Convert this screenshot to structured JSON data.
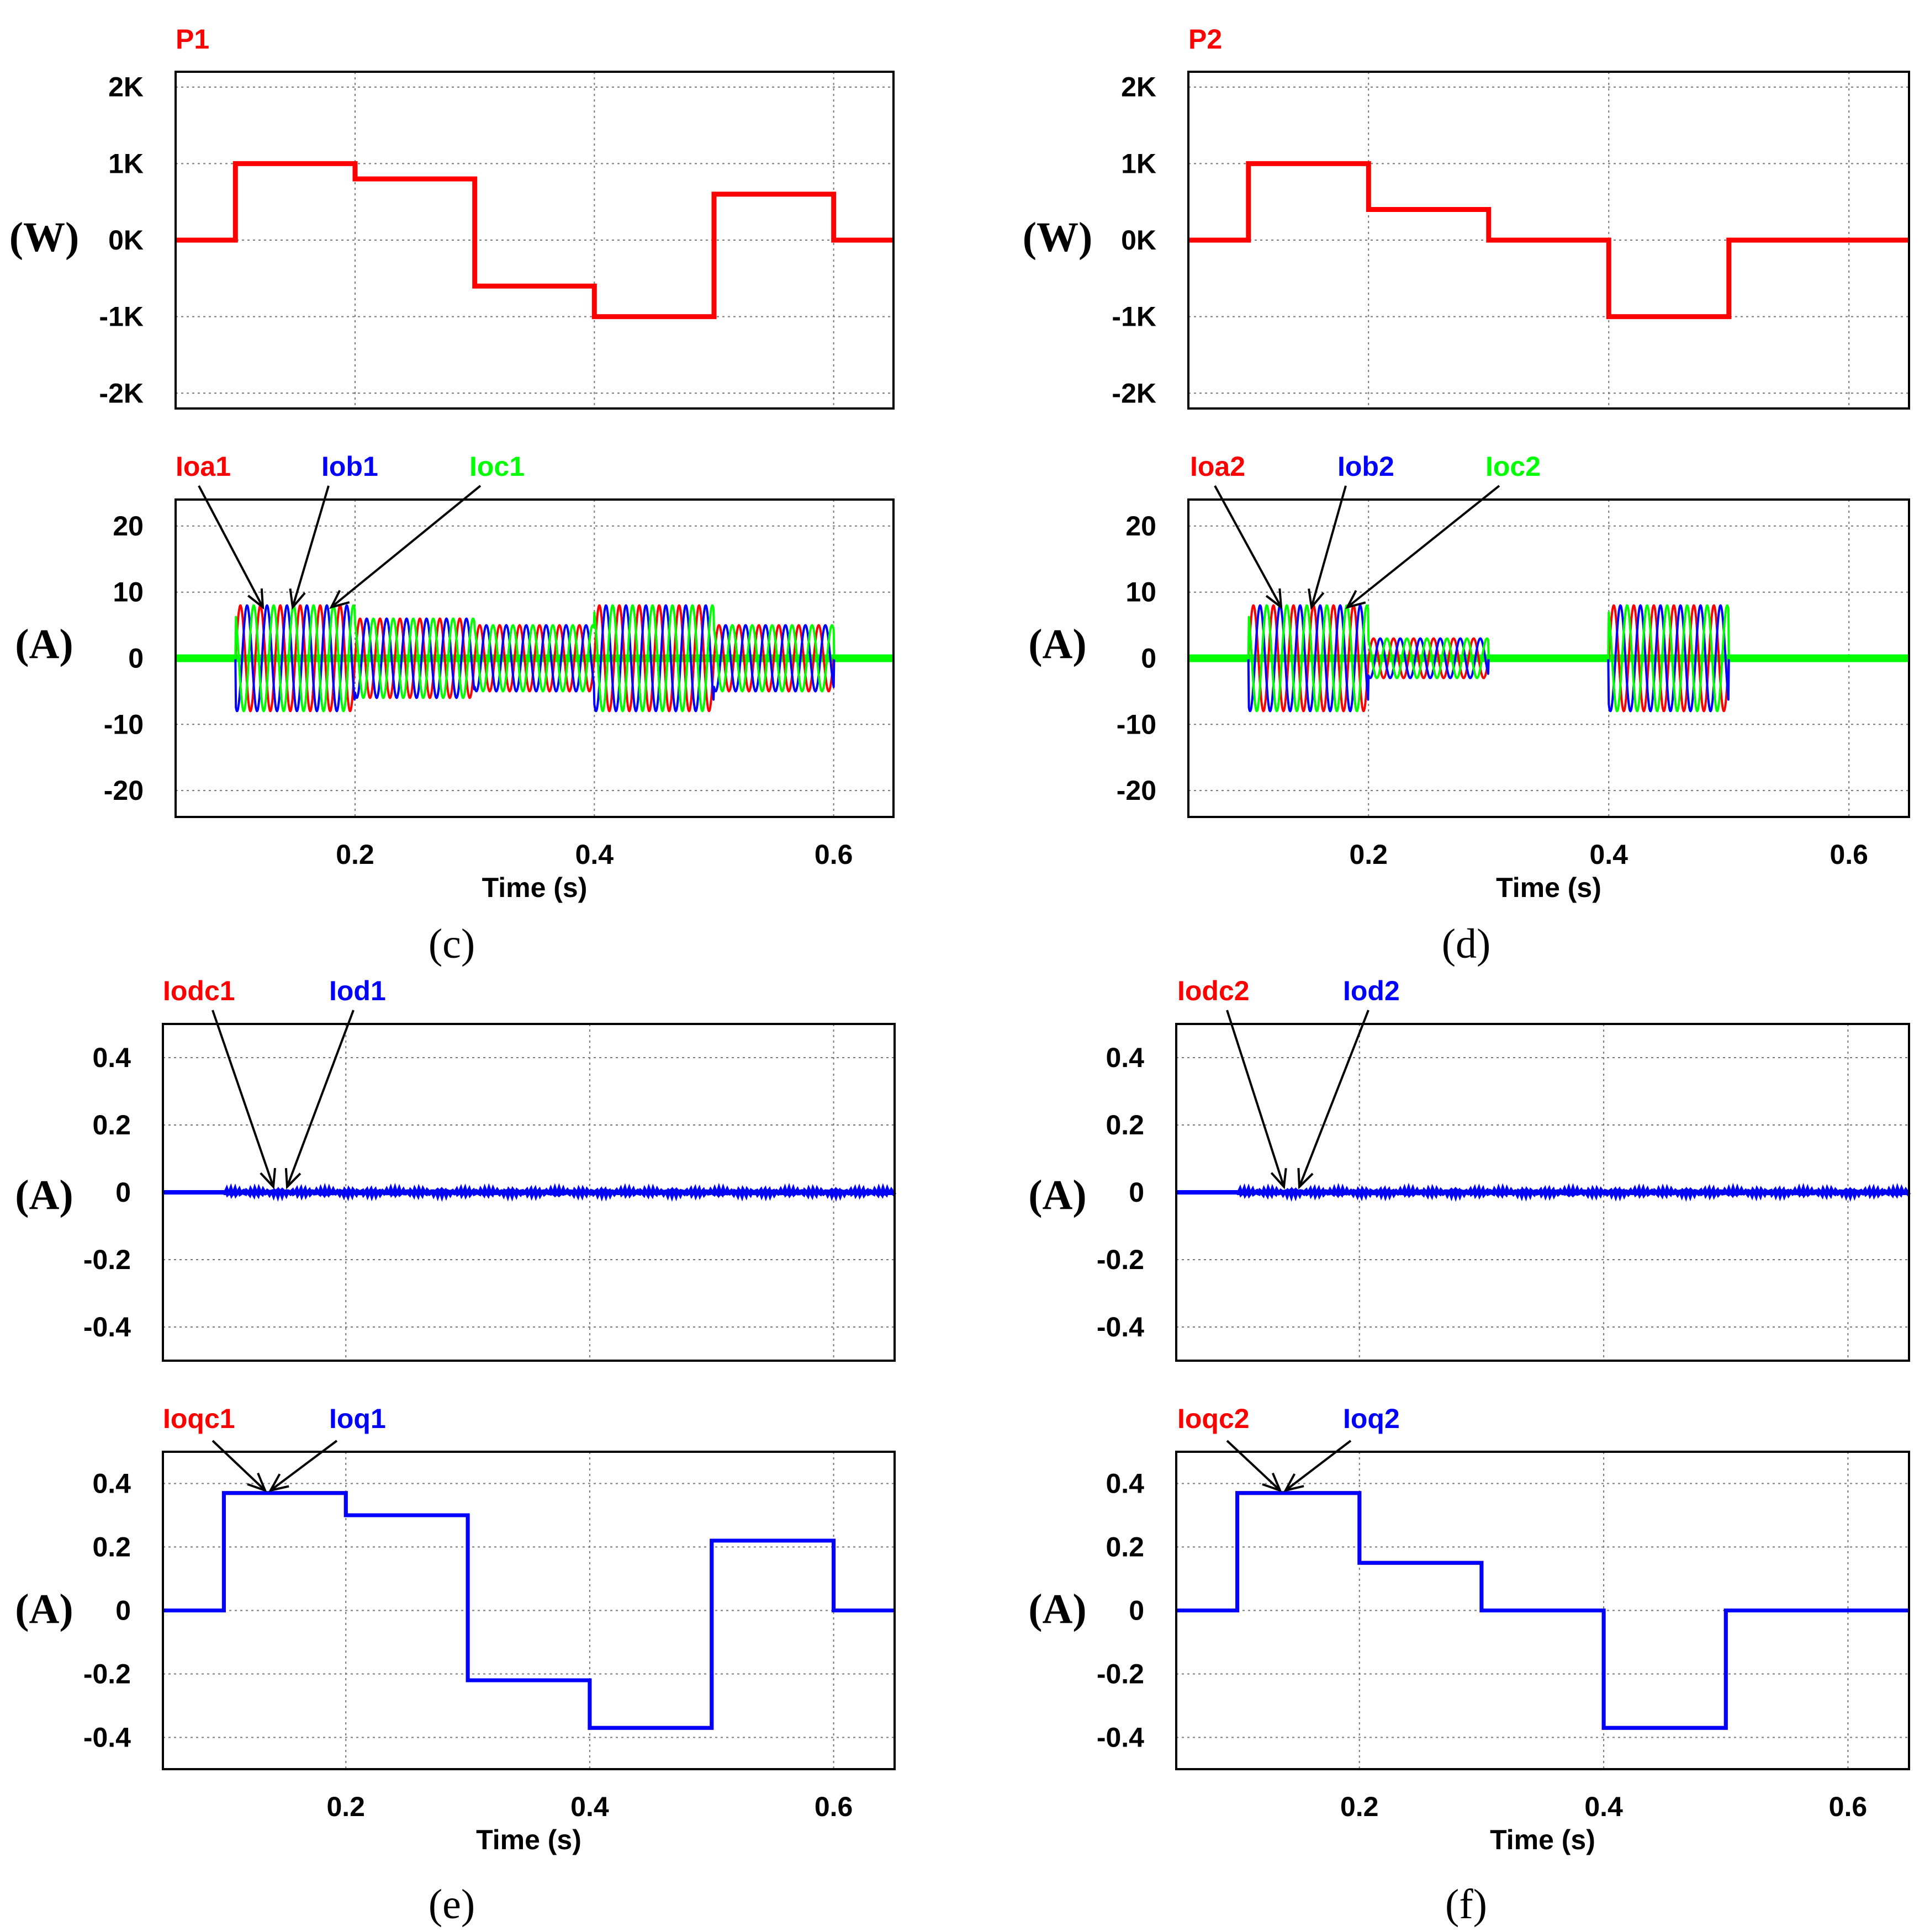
{
  "colors": {
    "red": "#ff0000",
    "blue": "#0000ff",
    "green": "#00ff00"
  },
  "captions": [
    "(c)",
    "(d)",
    "(e)",
    "(f)"
  ],
  "chart_data": [
    {
      "id": "c-power",
      "type": "line",
      "title": "P1",
      "ylabel": "(W)",
      "xlabel": "",
      "xlim": [
        0.05,
        0.65
      ],
      "xticks": [
        0.2,
        0.4,
        0.6
      ],
      "xtick_labels": [
        "",
        "",
        ""
      ],
      "ylim": [
        -2.2,
        2.2
      ],
      "yticks": [
        2,
        1,
        0,
        -1,
        -2
      ],
      "ytick_labels": [
        "2K",
        "1K",
        "0K",
        "-1K",
        "-2K"
      ],
      "series": [
        {
          "name": "P1",
          "color": "#ff0000",
          "x": [
            0.05,
            0.1,
            0.1,
            0.2,
            0.2,
            0.3,
            0.3,
            0.4,
            0.4,
            0.5,
            0.5,
            0.6,
            0.6,
            0.65
          ],
          "y": [
            0,
            0,
            1.0,
            1.0,
            0.8,
            0.8,
            -0.6,
            -0.6,
            -1.0,
            -1.0,
            0.6,
            0.6,
            0,
            0
          ]
        }
      ]
    },
    {
      "id": "c-current",
      "type": "line",
      "title": "",
      "ylabel": "(A)",
      "xlabel": "Time (s)",
      "xlim": [
        0.05,
        0.65
      ],
      "xticks": [
        0.2,
        0.4,
        0.6
      ],
      "xtick_labels": [
        "0.2",
        "0.4",
        "0.6"
      ],
      "ylim": [
        -24,
        24
      ],
      "yticks": [
        20,
        10,
        0,
        -10,
        -20
      ],
      "ytick_labels": [
        "20",
        "10",
        "0",
        "-10",
        "-20"
      ],
      "series": [
        {
          "name": "Ioa1",
          "color": "#ff0000"
        },
        {
          "name": "Iob1",
          "color": "#0000ff"
        },
        {
          "name": "Ioc1",
          "color": "#00ff00"
        }
      ],
      "amplitude_segments": [
        [
          0.1,
          0.2,
          8
        ],
        [
          0.2,
          0.3,
          6
        ],
        [
          0.3,
          0.4,
          5
        ],
        [
          0.4,
          0.5,
          8
        ],
        [
          0.5,
          0.6,
          5
        ]
      ],
      "frequency_hz": 60
    },
    {
      "id": "d-power",
      "type": "line",
      "title": "P2",
      "ylabel": "(W)",
      "xlabel": "",
      "xlim": [
        0.05,
        0.65
      ],
      "xticks": [
        0.2,
        0.4,
        0.6
      ],
      "xtick_labels": [
        "",
        "",
        ""
      ],
      "ylim": [
        -2.2,
        2.2
      ],
      "yticks": [
        2,
        1,
        0,
        -1,
        -2
      ],
      "ytick_labels": [
        "2K",
        "1K",
        "0K",
        "-1K",
        "-2K"
      ],
      "series": [
        {
          "name": "P2",
          "color": "#ff0000",
          "x": [
            0.05,
            0.1,
            0.1,
            0.2,
            0.2,
            0.3,
            0.3,
            0.4,
            0.4,
            0.5,
            0.5,
            0.65
          ],
          "y": [
            0,
            0,
            1.0,
            1.0,
            0.4,
            0.4,
            0,
            0,
            -1.0,
            -1.0,
            0,
            0
          ]
        }
      ]
    },
    {
      "id": "d-current",
      "type": "line",
      "title": "",
      "ylabel": "(A)",
      "xlabel": "Time (s)",
      "xlim": [
        0.05,
        0.65
      ],
      "xticks": [
        0.2,
        0.4,
        0.6
      ],
      "xtick_labels": [
        "0.2",
        "0.4",
        "0.6"
      ],
      "ylim": [
        -24,
        24
      ],
      "yticks": [
        20,
        10,
        0,
        -10,
        -20
      ],
      "ytick_labels": [
        "20",
        "10",
        "0",
        "-10",
        "-20"
      ],
      "series": [
        {
          "name": "Ioa2",
          "color": "#ff0000"
        },
        {
          "name": "Iob2",
          "color": "#0000ff"
        },
        {
          "name": "Ioc2",
          "color": "#00ff00"
        }
      ],
      "amplitude_segments": [
        [
          0.1,
          0.2,
          8
        ],
        [
          0.2,
          0.3,
          3
        ],
        [
          0.4,
          0.5,
          8
        ]
      ],
      "frequency_hz": 60
    },
    {
      "id": "e-d",
      "type": "line",
      "title": "",
      "ylabel": "(A)",
      "xlabel": "",
      "xlim": [
        0.05,
        0.65
      ],
      "xticks": [
        0.2,
        0.4,
        0.6
      ],
      "xtick_labels": [
        "",
        "",
        ""
      ],
      "ylim": [
        -0.5,
        0.5
      ],
      "yticks": [
        0.4,
        0.2,
        0,
        -0.2,
        -0.4
      ],
      "ytick_labels": [
        "0.4",
        "0.2",
        "0",
        "-0.2",
        "-0.4"
      ],
      "series": [
        {
          "name": "Iodc1",
          "color": "#ff0000",
          "x": [
            0.05,
            0.65
          ],
          "y": [
            0,
            0
          ]
        },
        {
          "name": "Iod1",
          "color": "#0000ff",
          "x": [
            0.05,
            0.65
          ],
          "y": [
            0,
            0
          ]
        }
      ]
    },
    {
      "id": "e-q",
      "type": "line",
      "title": "",
      "ylabel": "(A)",
      "xlabel": "Time (s)",
      "xlim": [
        0.05,
        0.65
      ],
      "xticks": [
        0.2,
        0.4,
        0.6
      ],
      "xtick_labels": [
        "0.2",
        "0.4",
        "0.6"
      ],
      "ylim": [
        -0.5,
        0.5
      ],
      "yticks": [
        0.4,
        0.2,
        0,
        -0.2,
        -0.4
      ],
      "ytick_labels": [
        "0.4",
        "0.2",
        "0",
        "-0.2",
        "-0.4"
      ],
      "series": [
        {
          "name": "Ioqc1",
          "color": "#ff0000",
          "x": [
            0.05,
            0.1,
            0.1,
            0.2,
            0.2,
            0.3,
            0.3,
            0.4,
            0.4,
            0.5,
            0.5,
            0.6,
            0.6,
            0.65
          ],
          "y": [
            0,
            0,
            0.37,
            0.37,
            0.3,
            0.3,
            -0.22,
            -0.22,
            -0.37,
            -0.37,
            0.22,
            0.22,
            0,
            0
          ]
        },
        {
          "name": "Ioq1",
          "color": "#0000ff",
          "x": [
            0.05,
            0.1,
            0.1,
            0.2,
            0.2,
            0.3,
            0.3,
            0.4,
            0.4,
            0.5,
            0.5,
            0.6,
            0.6,
            0.65
          ],
          "y": [
            0,
            0,
            0.37,
            0.37,
            0.3,
            0.3,
            -0.22,
            -0.22,
            -0.37,
            -0.37,
            0.22,
            0.22,
            0,
            0
          ]
        }
      ]
    },
    {
      "id": "f-d",
      "type": "line",
      "title": "",
      "ylabel": "(A)",
      "xlabel": "",
      "xlim": [
        0.05,
        0.65
      ],
      "xticks": [
        0.2,
        0.4,
        0.6
      ],
      "xtick_labels": [
        "",
        "",
        ""
      ],
      "ylim": [
        -0.5,
        0.5
      ],
      "yticks": [
        0.4,
        0.2,
        0,
        -0.2,
        -0.4
      ],
      "ytick_labels": [
        "0.4",
        "0.2",
        "0",
        "-0.2",
        "-0.4"
      ],
      "series": [
        {
          "name": "Iodc2",
          "color": "#ff0000",
          "x": [
            0.05,
            0.65
          ],
          "y": [
            0,
            0
          ]
        },
        {
          "name": "Iod2",
          "color": "#0000ff",
          "x": [
            0.05,
            0.65
          ],
          "y": [
            0,
            0
          ]
        }
      ]
    },
    {
      "id": "f-q",
      "type": "line",
      "title": "",
      "ylabel": "(A)",
      "xlabel": "Time (s)",
      "xlim": [
        0.05,
        0.65
      ],
      "xticks": [
        0.2,
        0.4,
        0.6
      ],
      "xtick_labels": [
        "0.2",
        "0.4",
        "0.6"
      ],
      "ylim": [
        -0.5,
        0.5
      ],
      "yticks": [
        0.4,
        0.2,
        0,
        -0.2,
        -0.4
      ],
      "ytick_labels": [
        "0.4",
        "0.2",
        "0",
        "-0.2",
        "-0.4"
      ],
      "series": [
        {
          "name": "Ioqc2",
          "color": "#ff0000",
          "x": [
            0.05,
            0.1,
            0.1,
            0.2,
            0.2,
            0.3,
            0.3,
            0.4,
            0.4,
            0.5,
            0.5,
            0.65
          ],
          "y": [
            0,
            0,
            0.37,
            0.37,
            0.15,
            0.15,
            0,
            0,
            -0.37,
            -0.37,
            0,
            0
          ]
        },
        {
          "name": "Ioq2",
          "color": "#0000ff",
          "x": [
            0.05,
            0.1,
            0.1,
            0.2,
            0.2,
            0.3,
            0.3,
            0.4,
            0.4,
            0.5,
            0.5,
            0.65
          ],
          "y": [
            0,
            0,
            0.37,
            0.37,
            0.15,
            0.15,
            0,
            0,
            -0.37,
            -0.37,
            0,
            0
          ]
        }
      ]
    }
  ]
}
